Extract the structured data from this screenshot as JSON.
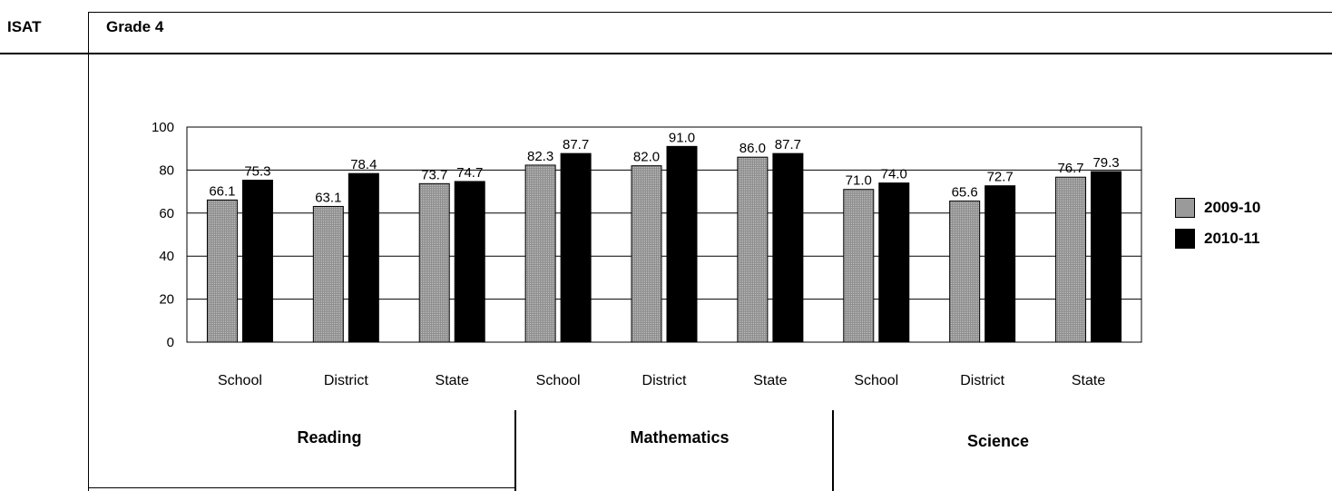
{
  "header": {
    "test_label": "ISAT",
    "grade_label": "Grade 4"
  },
  "colors": {
    "series_2009": "#9a9a9a",
    "series_2010": "#000000"
  },
  "chart_data": {
    "type": "bar",
    "categories": [
      "School",
      "District",
      "State",
      "School",
      "District",
      "State",
      "School",
      "District",
      "State"
    ],
    "groups": [
      "Reading",
      "Mathematics",
      "Science"
    ],
    "series": [
      {
        "name": "2009-10",
        "values": [
          66.1,
          63.1,
          73.7,
          82.3,
          82.0,
          86.0,
          71.0,
          65.6,
          76.7
        ]
      },
      {
        "name": "2010-11",
        "values": [
          75.3,
          78.4,
          74.7,
          87.7,
          91.0,
          87.7,
          74.0,
          72.7,
          79.3
        ]
      }
    ],
    "data_labels": [
      [
        "66.1",
        "63.1",
        "73.7",
        "82.3",
        "82.0",
        "86.0",
        "71.0",
        "65.6",
        "76.7"
      ],
      [
        "75.3",
        "78.4",
        "74.7",
        "87.7",
        "91.0",
        "87.7",
        "74.0",
        "72.7",
        "79.3"
      ]
    ],
    "y_ticks": [
      "0",
      "20",
      "40",
      "60",
      "80",
      "100"
    ],
    "ylim": [
      0,
      100
    ],
    "grid": true,
    "legend": "right"
  }
}
